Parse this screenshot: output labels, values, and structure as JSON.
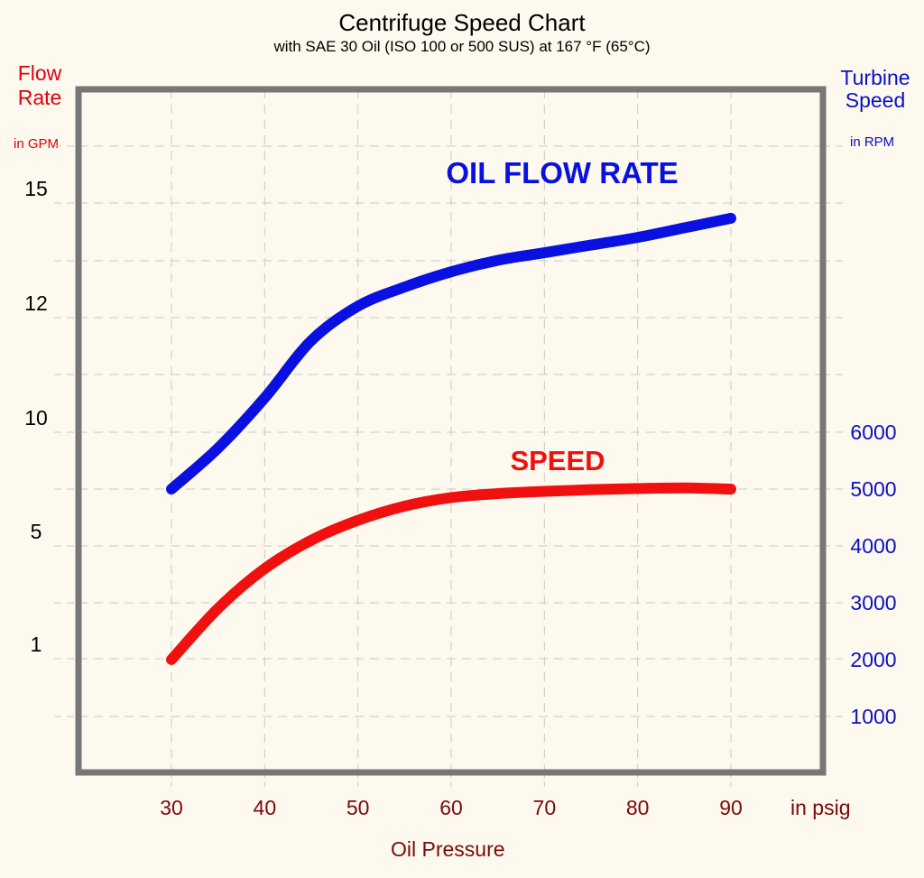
{
  "chart_data": {
    "type": "line",
    "title": "Centrifuge Speed Chart",
    "subtitle": "with SAE 30 Oil (ISO 100 or 500 SUS) at 167 °F (65°C)",
    "x_axis": {
      "label": "Oil Pressure",
      "unit": "in psig",
      "ticks": [
        30,
        40,
        50,
        60,
        70,
        80,
        90
      ],
      "range": [
        20,
        100
      ]
    },
    "y_left": {
      "label": "Flow Rate",
      "unit": "in GPM",
      "tick_labels": [
        "1",
        "5",
        "10",
        "12",
        "15"
      ]
    },
    "y_right": {
      "label": "Turbine Speed",
      "unit": "in RPM",
      "ticks": [
        1000,
        2000,
        3000,
        4000,
        5000,
        6000
      ]
    },
    "grid": true,
    "colors": {
      "flow": "#0a10e0",
      "speed": "#f01010",
      "left_axis": "#e0000f",
      "right_axis": "#0a10c4",
      "x_axis": "#7a0a0a",
      "frame": "#777777",
      "grid": "#c9c9c9"
    },
    "series": [
      {
        "name": "OIL FLOW RATE",
        "axis": "left",
        "x": [
          30,
          35,
          40,
          45,
          50,
          55,
          60,
          65,
          70,
          75,
          80,
          85,
          90
        ],
        "y": [
          7.5,
          9.3,
          10.6,
          11.6,
          12.3,
          12.8,
          13.2,
          13.5,
          13.7,
          13.9,
          14.1,
          14.35,
          14.6
        ]
      },
      {
        "name": "SPEED",
        "axis": "right",
        "x": [
          30,
          35,
          40,
          45,
          50,
          55,
          60,
          65,
          70,
          75,
          80,
          85,
          90
        ],
        "y": [
          2000,
          2900,
          3600,
          4100,
          4450,
          4700,
          4850,
          4920,
          4960,
          4990,
          5010,
          5020,
          5000
        ]
      }
    ]
  }
}
